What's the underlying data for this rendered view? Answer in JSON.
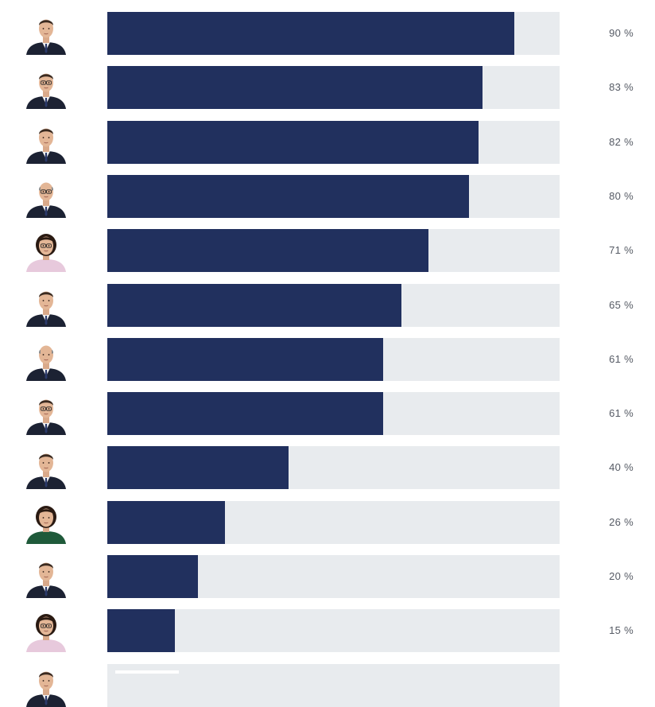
{
  "colors": {
    "bar_fill": "#21305e",
    "bar_track": "#e8ebee",
    "label_text": "#555a64"
  },
  "chart_data": {
    "type": "bar",
    "orientation": "horizontal",
    "xlim": [
      0,
      100
    ],
    "grid": false,
    "legend": "none",
    "rows": [
      {
        "avatar": "man-portrait-icon",
        "value": 90,
        "label": "90 %"
      },
      {
        "avatar": "man-glasses-portrait-icon",
        "value": 83,
        "label": "83 %"
      },
      {
        "avatar": "man-portrait-icon",
        "value": 82,
        "label": "82 %"
      },
      {
        "avatar": "bald-man-glasses-portrait-icon",
        "value": 80,
        "label": "80 %"
      },
      {
        "avatar": "woman-glasses-portrait-icon",
        "value": 71,
        "label": "71 %"
      },
      {
        "avatar": "man-portrait-icon",
        "value": 65,
        "label": "65 %"
      },
      {
        "avatar": "bald-man-portrait-icon",
        "value": 61,
        "label": "61 %"
      },
      {
        "avatar": "man-glasses-portrait-icon",
        "value": 61,
        "label": "61 %"
      },
      {
        "avatar": "man-portrait-icon",
        "value": 40,
        "label": "40 %"
      },
      {
        "avatar": "woman-portrait-icon",
        "value": 26,
        "label": "26 %"
      },
      {
        "avatar": "man-portrait-icon",
        "value": 20,
        "label": "20 %"
      },
      {
        "avatar": "woman-glasses-portrait-icon",
        "value": 15,
        "label": "15 %"
      }
    ],
    "partial_row": {
      "avatar": "man-portrait-icon"
    }
  }
}
